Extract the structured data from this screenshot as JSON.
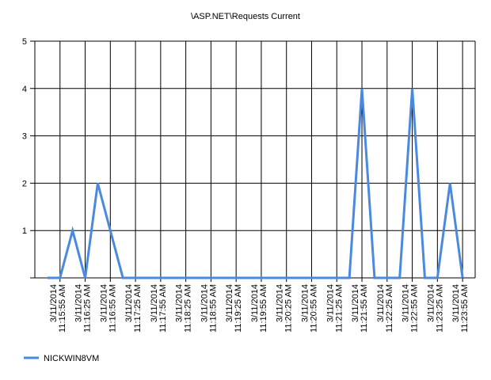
{
  "chart_data": {
    "type": "line",
    "title": "\\ASP.NET\\Requests Current",
    "categories": [
      null,
      "3/11/2014 11:15:55 AM",
      null,
      "3/11/2014 11:16:25 AM",
      null,
      "3/11/2014 11:16:55 AM",
      null,
      "3/11/2014 11:17:25 AM",
      null,
      "3/11/2014 11:17:55 AM",
      null,
      "3/11/2014 11:18:25 AM",
      null,
      "3/11/2014 11:18:55 AM",
      null,
      "3/11/2014 11:19:25 AM",
      null,
      "3/11/2014 11:19:55 AM",
      null,
      "3/11/2014 11:20:25 AM",
      null,
      "3/11/2014 11:20:55 AM",
      null,
      "3/11/2014 11:21:25 AM",
      null,
      "3/11/2014 11:21:55 AM",
      null,
      "3/11/2014 11:22:25 AM",
      null,
      "3/11/2014 11:22:55 AM",
      null,
      "3/11/2014 11:23:25 AM",
      null,
      "3/11/2014 11:23:55 AM"
    ],
    "series": [
      {
        "name": "NICKWIN8VM",
        "color": "#4a89e0",
        "values": [
          0,
          0,
          1,
          0,
          2,
          1,
          0,
          0,
          0,
          0,
          0,
          0,
          0,
          0,
          0,
          0,
          0,
          0,
          0,
          0,
          0,
          0,
          0,
          0,
          0,
          4,
          0,
          0,
          0,
          4,
          0,
          0,
          2,
          0
        ]
      }
    ],
    "ylim": [
      0,
      5
    ],
    "yticks": [
      1,
      2,
      3,
      4,
      5
    ],
    "grid": true,
    "legend": "bottom-left"
  }
}
